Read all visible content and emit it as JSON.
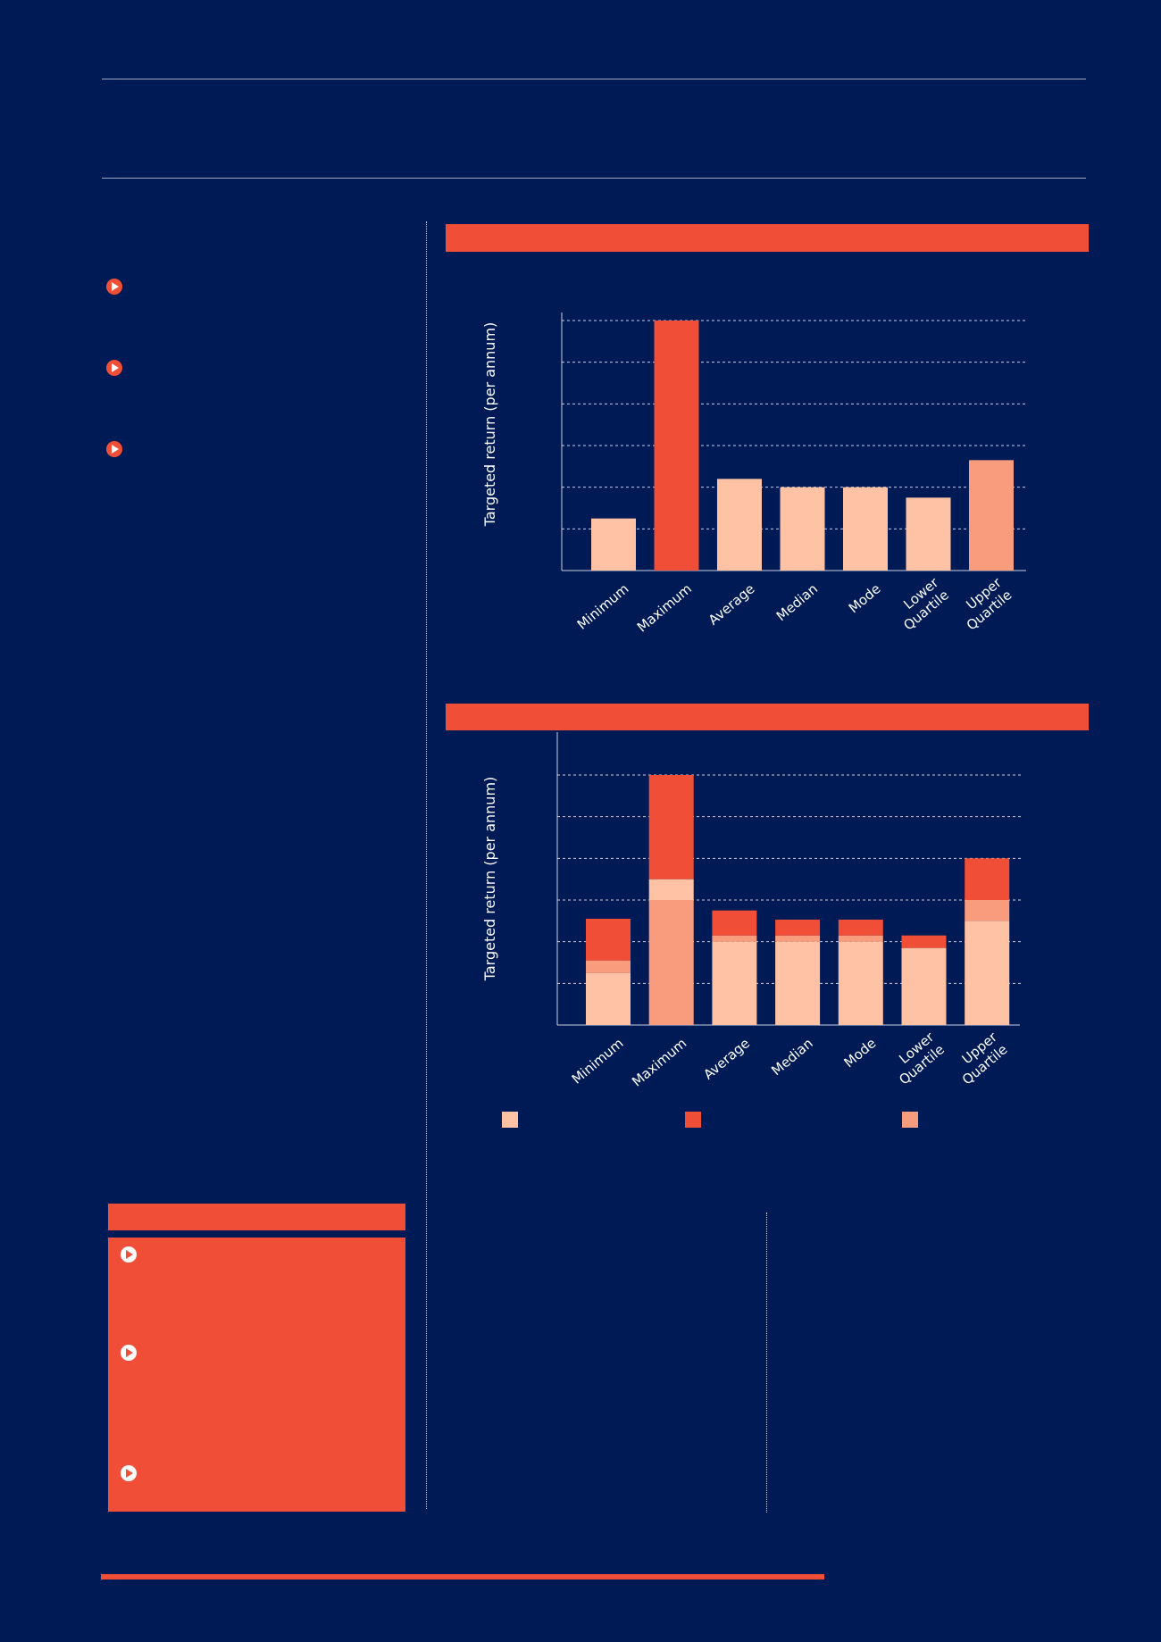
{
  "colors": {
    "background": "#001A55",
    "accent": "#F04E37",
    "light": "#FFC2A4",
    "mid": "#F99B7D",
    "white": "#FFFFFF"
  },
  "icons": [
    "play-circle-icon"
  ],
  "charts": {
    "chart1": {
      "ylabel": "Targeted return (per annum)",
      "categories": [
        "Minimum",
        "Maximum",
        "Average",
        "Median",
        "Mode",
        "Lower Quartile",
        "Upper Quartile"
      ],
      "categories_display": [
        [
          "Minimum"
        ],
        [
          "Maximum"
        ],
        [
          "Average"
        ],
        [
          "Median"
        ],
        [
          "Mode"
        ],
        [
          "Lower",
          "Quartile"
        ],
        [
          "Upper",
          "Quartile"
        ]
      ]
    },
    "chart2": {
      "ylabel": "Targeted return (per annum)",
      "categories": [
        "Minimum",
        "Maximum",
        "Average",
        "Median",
        "Mode",
        "Lower Quartile",
        "Upper Quartile"
      ],
      "categories_display": [
        [
          "Minimum"
        ],
        [
          "Maximum"
        ],
        [
          "Average"
        ],
        [
          "Median"
        ],
        [
          "Mode"
        ],
        [
          "Lower",
          "Quartile"
        ],
        [
          "Upper",
          "Quartile"
        ]
      ]
    }
  },
  "chart_data": [
    {
      "type": "bar",
      "categories": [
        "Minimum",
        "Maximum",
        "Average",
        "Median",
        "Mode",
        "Lower Quartile",
        "Upper Quartile"
      ],
      "values": [
        1.25,
        6.0,
        2.2,
        2.0,
        2.0,
        1.75,
        2.65
      ],
      "bar_colors": [
        "#FFC2A4",
        "#F04E37",
        "#FFC2A4",
        "#FFC2A4",
        "#FFC2A4",
        "#FFC2A4",
        "#F99B7D"
      ],
      "title": "",
      "xlabel": "",
      "ylabel": "Targeted return (per annum)",
      "ylim": [
        0,
        6
      ],
      "grid": true
    },
    {
      "type": "bar",
      "stacked": true,
      "categories": [
        "Minimum",
        "Maximum",
        "Average",
        "Median",
        "Mode",
        "Lower Quartile",
        "Upper Quartile"
      ],
      "series": [
        {
          "color": "#FFC2A4",
          "values": [
            1.25,
            3.0,
            2.0,
            2.0,
            2.0,
            1.8,
            2.5
          ]
        },
        {
          "color": "#F99B7D",
          "values": [
            0.3,
            0.0,
            0.15,
            0.15,
            0.15,
            0.0,
            0.5
          ]
        },
        {
          "color": "#FFC2A4",
          "values": [
            0.0,
            0.5,
            0.0,
            0.0,
            0.0,
            0.05,
            0.0
          ]
        },
        {
          "color": "#F04E37",
          "values": [
            1.0,
            2.5,
            0.6,
            0.38,
            0.38,
            0.3,
            1.0
          ]
        }
      ],
      "base_colors": [
        "#FFC2A4",
        "#F99B7D",
        "#FFC2A4",
        "#FFC2A4",
        "#FFC2A4",
        "#FFC2A4",
        "#FFC2A4"
      ],
      "title": "",
      "xlabel": "",
      "ylabel": "Targeted return (per annum)",
      "ylim": [
        0,
        6
      ],
      "grid": true,
      "legend_position": "bottom",
      "legend_colors": [
        "#FFC2A4",
        "#F04E37",
        "#F99B7D"
      ]
    }
  ]
}
